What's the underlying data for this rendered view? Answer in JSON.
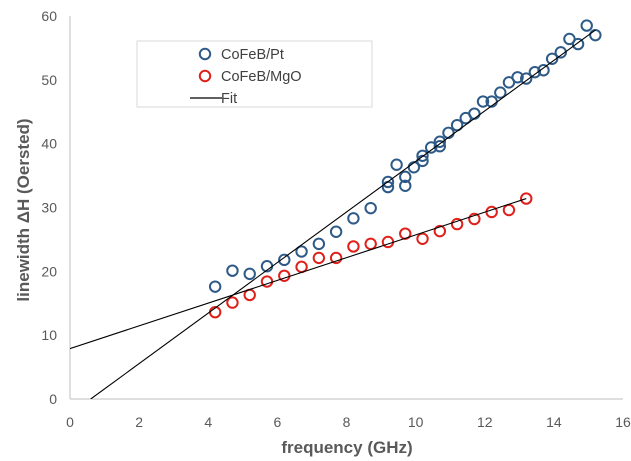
{
  "chart_data": {
    "type": "scatter",
    "title": "",
    "xlabel": "frequency (GHz)",
    "ylabel": "linewidth ΔH (Oersted)",
    "xlim": [
      0,
      16
    ],
    "ylim": [
      0,
      60
    ],
    "xticks": [
      "0",
      "2",
      "4",
      "6",
      "8",
      "10",
      "12",
      "14",
      "16"
    ],
    "yticks": [
      "0",
      "10",
      "20",
      "30",
      "40",
      "50",
      "60"
    ],
    "grid": false,
    "legend_position": "top-left",
    "series": [
      {
        "name": "CoFeB/Pt",
        "color": "#2e5a87",
        "marker": "open-circle",
        "points": [
          [
            4.2,
            17.6
          ],
          [
            4.7,
            20.1
          ],
          [
            5.2,
            19.6
          ],
          [
            5.7,
            20.8
          ],
          [
            6.2,
            21.8
          ],
          [
            6.7,
            23.1
          ],
          [
            7.2,
            24.3
          ],
          [
            7.7,
            26.2
          ],
          [
            8.2,
            28.3
          ],
          [
            8.7,
            29.9
          ],
          [
            9.2,
            33.2
          ],
          [
            9.2,
            34.0
          ],
          [
            9.45,
            36.7
          ],
          [
            9.7,
            33.4
          ],
          [
            9.7,
            34.8
          ],
          [
            9.95,
            36.3
          ],
          [
            10.2,
            37.3
          ],
          [
            10.2,
            38.1
          ],
          [
            10.45,
            39.4
          ],
          [
            10.7,
            39.6
          ],
          [
            10.7,
            40.3
          ],
          [
            10.95,
            41.7
          ],
          [
            11.2,
            42.9
          ],
          [
            11.45,
            44.0
          ],
          [
            11.7,
            44.7
          ],
          [
            11.95,
            46.6
          ],
          [
            12.2,
            46.6
          ],
          [
            12.45,
            48.0
          ],
          [
            12.7,
            49.6
          ],
          [
            12.95,
            50.4
          ],
          [
            13.2,
            50.2
          ],
          [
            13.45,
            51.2
          ],
          [
            13.7,
            51.5
          ],
          [
            13.95,
            53.3
          ],
          [
            14.2,
            54.3
          ],
          [
            14.45,
            56.4
          ],
          [
            14.7,
            55.6
          ],
          [
            14.95,
            58.5
          ],
          [
            15.2,
            57.0
          ]
        ]
      },
      {
        "name": "CoFeB/MgO",
        "color": "#e0201b",
        "marker": "open-circle",
        "points": [
          [
            4.2,
            13.6
          ],
          [
            4.7,
            15.1
          ],
          [
            5.2,
            16.3
          ],
          [
            5.7,
            18.4
          ],
          [
            6.2,
            19.3
          ],
          [
            6.7,
            20.7
          ],
          [
            7.2,
            22.1
          ],
          [
            7.7,
            22.1
          ],
          [
            8.2,
            23.9
          ],
          [
            8.7,
            24.3
          ],
          [
            9.2,
            24.6
          ],
          [
            9.7,
            25.9
          ],
          [
            10.2,
            25.1
          ],
          [
            10.7,
            26.3
          ],
          [
            11.2,
            27.4
          ],
          [
            11.7,
            28.2
          ],
          [
            12.2,
            29.3
          ],
          [
            12.7,
            29.6
          ],
          [
            13.2,
            31.4
          ]
        ]
      },
      {
        "name": "Fit",
        "color": "#000000",
        "marker": "line",
        "lines": [
          {
            "x": [
              0.6,
              15.2
            ],
            "y": [
              0.0,
              57.8
            ]
          },
          {
            "x": [
              0.0,
              13.2
            ],
            "y": [
              7.9,
              31.4
            ]
          }
        ]
      }
    ]
  }
}
